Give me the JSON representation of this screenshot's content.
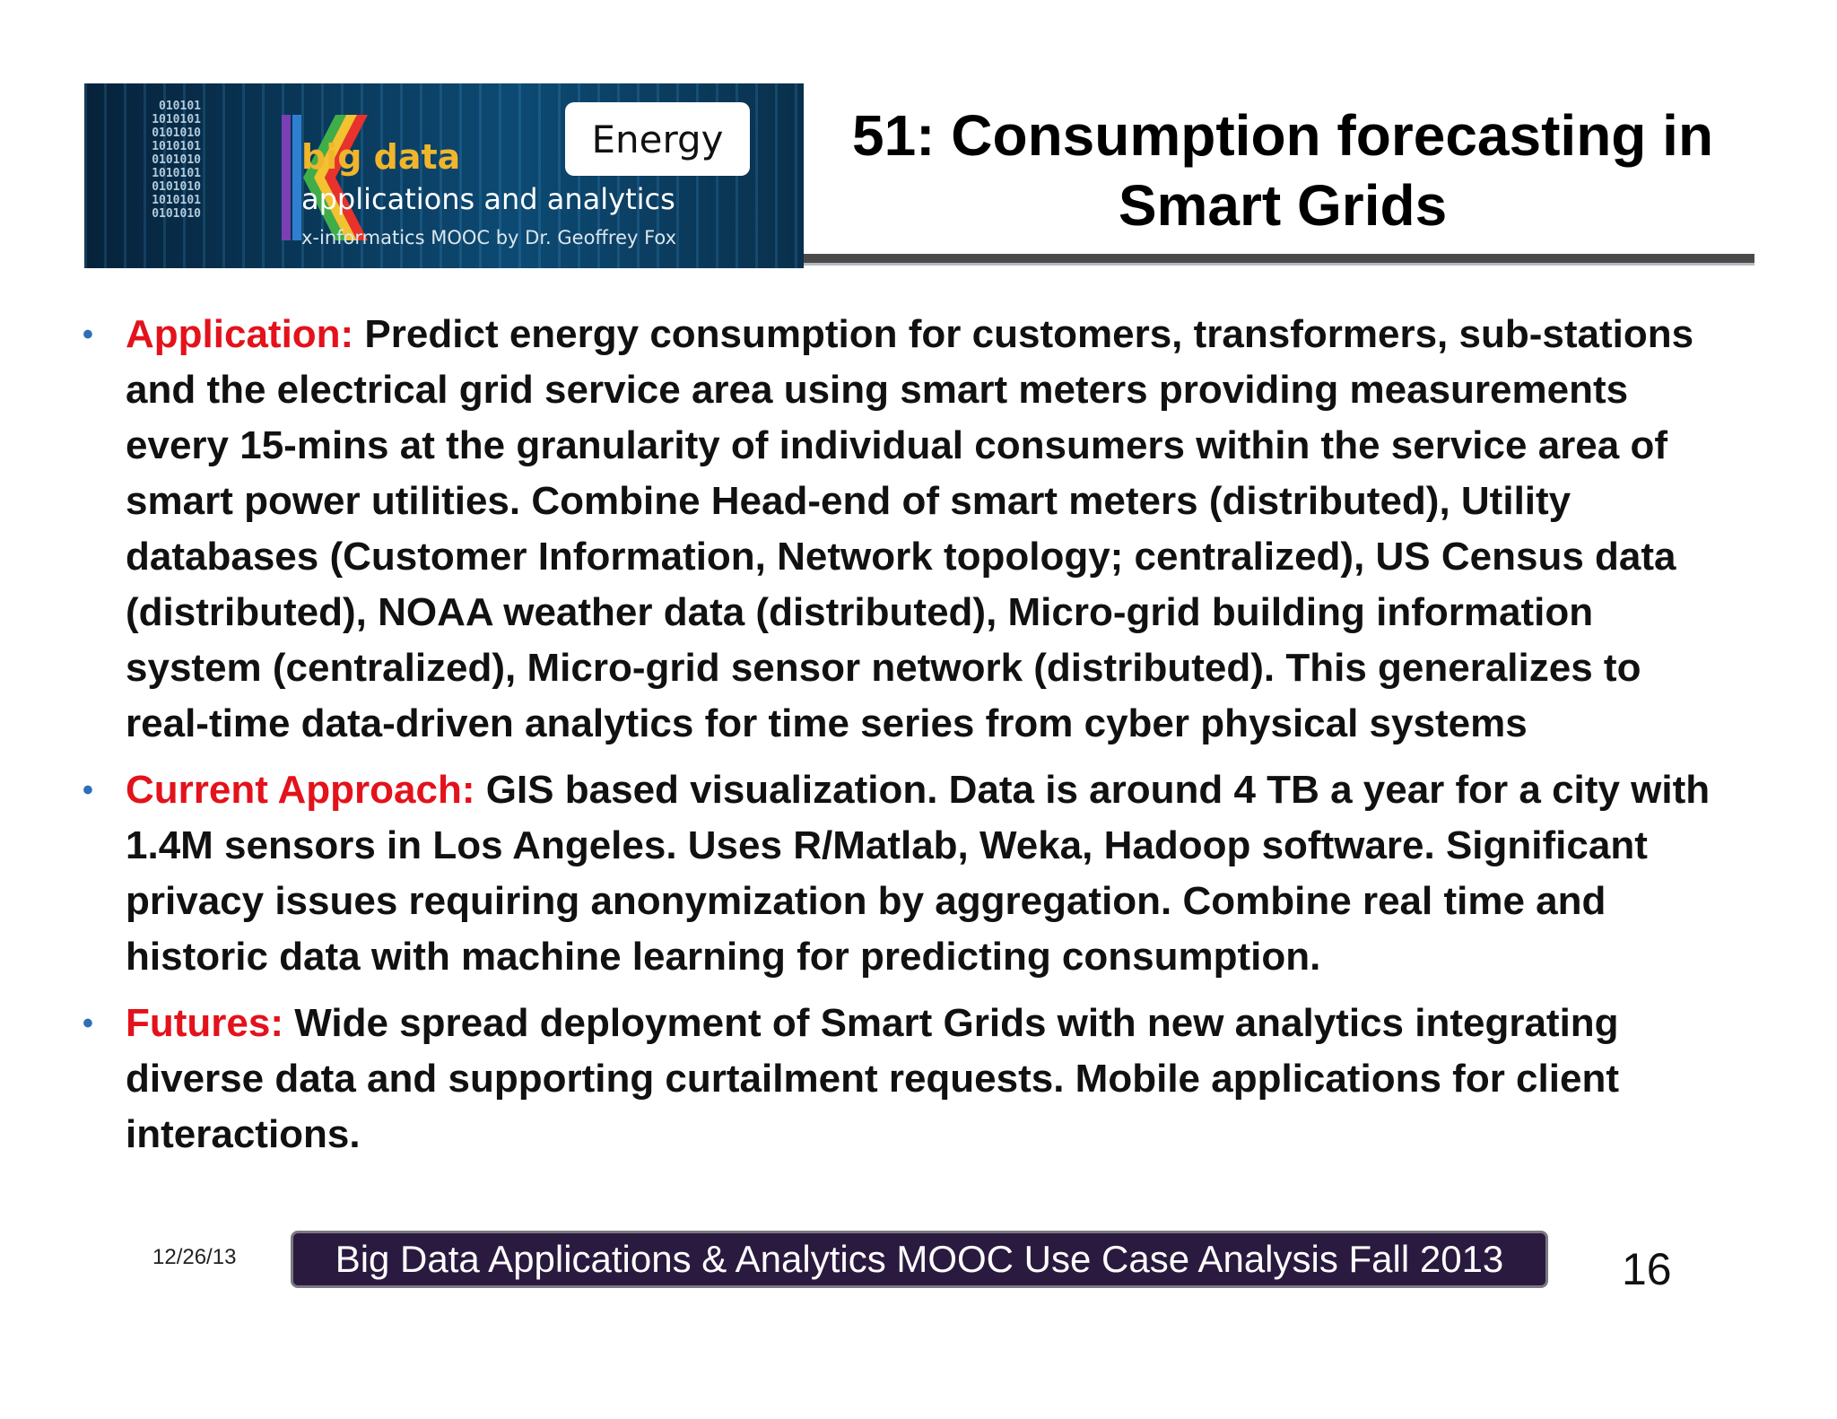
{
  "banner": {
    "binary_lines": [
      "010101",
      "1010101",
      "0101010",
      "1010101",
      "0101010",
      "1010101",
      "0101010",
      "1010101",
      "0101010"
    ],
    "logo_title": "big data",
    "logo_subtitle": "applications and analytics",
    "logo_byline": "x-informatics MOOC by Dr. Geoffrey Fox",
    "category_badge": "Energy"
  },
  "slide_title": "51: Consumption forecasting in Smart Grids",
  "bullets": [
    {
      "label": "Application:",
      "text": " Predict energy consumption for customers, transformers, sub-stations and the electrical grid service area using smart meters providing measurements every 15-mins at the granularity of individual consumers within the service area of smart power utilities. Combine Head-end of smart meters (distributed), Utility databases (Customer Information, Network topology; centralized), US Census data (distributed), NOAA weather data (distributed), Micro-grid building information system (centralized), Micro-grid sensor network (distributed). This generalizes to real-time data-driven analytics  for time series from cyber physical systems"
    },
    {
      "label": "Current Approach:",
      "text": " GIS based visualization. Data is around 4 TB a year for a city with 1.4M sensors in Los Angeles. Uses R/Matlab, Weka, Hadoop software. Significant privacy issues requiring anonymization by aggregation. Combine real time and historic data with machine learning for predicting consumption."
    },
    {
      "label": "Futures:",
      "text": " Wide spread deployment of Smart Grids with new analytics integrating diverse data and supporting curtailment requests. Mobile applications for client interactions."
    }
  ],
  "footer": {
    "date": "12/26/13",
    "course": "Big Data Applications & Analytics MOOC Use Case Analysis Fall 2013",
    "page_number": "16"
  },
  "colors": {
    "keyword": "#e3121b",
    "bullet": "#2e6fb7",
    "footer_bar": "#2b1a3f"
  }
}
